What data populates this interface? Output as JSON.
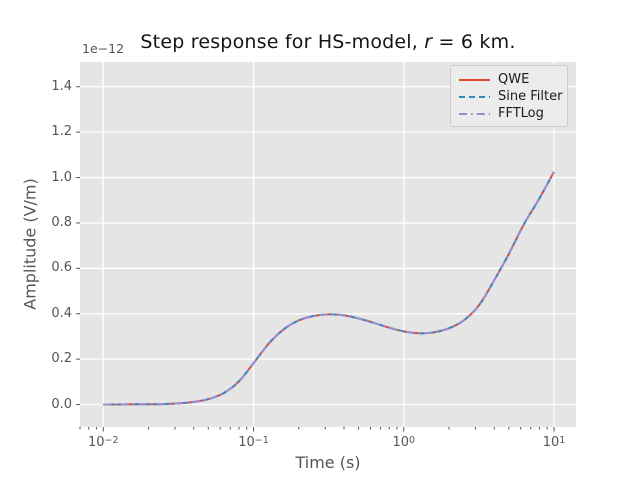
{
  "colors": {
    "figure_bg": "#ffffff",
    "plot_bg": "#e5e5e5",
    "grid": "#ffffff",
    "tick_mark": "#555555",
    "tick_text": "#555555",
    "axis_label_text": "#555555",
    "title_text": "#141414",
    "legend_bg": "#ececec",
    "legend_border": "#cccccc",
    "series_red": "#E24A33",
    "series_blue": "#348ABD",
    "series_purple": "#988ED5"
  },
  "title_parts": {
    "prefix": "Step response for HS-model, ",
    "variable": "r",
    "suffix": " = 6 km."
  },
  "chart_data": {
    "type": "line",
    "title": "Step response for HS-model, r = 6 km.",
    "xlabel": "Time (s)",
    "ylabel": "Amplitude (V/m)",
    "y_offset_label": "1e−12",
    "x_scale": "log",
    "y_scale": "linear",
    "xlim": [
      0.007,
      14
    ],
    "ylim": [
      -0.099,
      1.509
    ],
    "grid": true,
    "legend_position": "upper right",
    "x_ticks": [
      {
        "exp": "−2",
        "t": 0.01
      },
      {
        "exp": "−1",
        "t": 0.1
      },
      {
        "exp": "0",
        "t": 1
      },
      {
        "exp": "1",
        "t": 10
      }
    ],
    "y_ticks": [
      {
        "label": "0.0",
        "v": 0.0
      },
      {
        "label": "0.2",
        "v": 0.2
      },
      {
        "label": "0.4",
        "v": 0.4
      },
      {
        "label": "0.6",
        "v": 0.6
      },
      {
        "label": "0.8",
        "v": 0.8
      },
      {
        "label": "1.0",
        "v": 1.0
      },
      {
        "label": "1.2",
        "v": 1.2
      },
      {
        "label": "1.4",
        "v": 1.4
      }
    ],
    "x": [
      0.01,
      0.0126,
      0.0158,
      0.02,
      0.0251,
      0.0316,
      0.0398,
      0.0501,
      0.0631,
      0.0794,
      0.1,
      0.1259,
      0.1585,
      0.1995,
      0.2512,
      0.3162,
      0.3981,
      0.5012,
      0.631,
      0.7943,
      1.0,
      1.2589,
      1.5849,
      1.9953,
      2.5119,
      3.1623,
      3.9811,
      5.0119,
      6.3096,
      7.9433,
      10.0
    ],
    "series": [
      {
        "name": "QWE",
        "color": "#E24A33",
        "style": "solid",
        "values": [
          0.0,
          0.0,
          0.001,
          0.001,
          0.002,
          0.005,
          0.011,
          0.024,
          0.05,
          0.1,
          0.182,
          0.268,
          0.331,
          0.37,
          0.39,
          0.397,
          0.393,
          0.379,
          0.36,
          0.339,
          0.322,
          0.314,
          0.318,
          0.336,
          0.371,
          0.437,
          0.545,
          0.665,
          0.795,
          0.905,
          1.025
        ]
      },
      {
        "name": "Sine Filter",
        "color": "#348ABD",
        "style": "dashed",
        "values": [
          0.0,
          0.0,
          0.001,
          0.001,
          0.002,
          0.005,
          0.011,
          0.024,
          0.05,
          0.1,
          0.182,
          0.268,
          0.331,
          0.37,
          0.39,
          0.397,
          0.393,
          0.379,
          0.36,
          0.339,
          0.322,
          0.314,
          0.318,
          0.336,
          0.371,
          0.437,
          0.545,
          0.665,
          0.795,
          0.905,
          1.025
        ]
      },
      {
        "name": "FFTLog",
        "color": "#988ED5",
        "style": "dashdot",
        "values": [
          0.0,
          0.0,
          0.001,
          0.001,
          0.002,
          0.005,
          0.011,
          0.024,
          0.05,
          0.1,
          0.182,
          0.268,
          0.331,
          0.37,
          0.39,
          0.397,
          0.393,
          0.379,
          0.36,
          0.339,
          0.322,
          0.314,
          0.318,
          0.336,
          0.371,
          0.437,
          0.545,
          0.665,
          0.795,
          0.905,
          1.025
        ]
      }
    ]
  }
}
